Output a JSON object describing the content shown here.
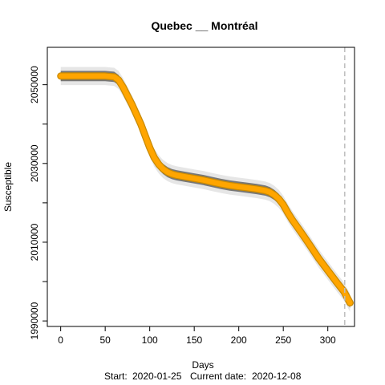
{
  "chart_data": {
    "type": "line",
    "title": "Quebec __ Montréal",
    "xlabel": "Days",
    "ylabel": "Susceptible",
    "footer_start_label": "Start:",
    "footer_start_value": "2020-01-25",
    "footer_current_label": "Current date:",
    "footer_current_value": "2020-12-08",
    "xlim": [
      -15,
      330
    ],
    "ylim": [
      1988600,
      2059500
    ],
    "x_ticks": [
      0,
      50,
      100,
      150,
      200,
      250,
      300
    ],
    "y_ticks": [
      1990000,
      2010000,
      2030000,
      2050000
    ],
    "y_minor_ticks": [
      2000000,
      2020000,
      2040000
    ],
    "current_day": 319,
    "grid": false,
    "colors": {
      "fit_line": "#ffa500",
      "fit_border": "#c98a00",
      "band_inner": "#777777",
      "band_outer": "#dcdcdc",
      "vline": "#bebebe"
    },
    "series": [
      {
        "x": [
          0,
          10,
          20,
          30,
          40,
          50,
          60,
          65,
          70,
          75,
          80,
          85,
          90,
          95,
          100,
          105,
          110,
          115,
          120,
          125,
          130,
          140,
          150,
          160,
          170,
          180,
          190,
          200,
          210,
          220,
          230,
          235,
          240,
          245,
          250,
          255,
          260,
          270,
          280,
          290,
          300,
          310,
          318,
          325
        ],
        "values": [
          2052200,
          2052200,
          2052200,
          2052200,
          2052200,
          2052200,
          2052000,
          2051200,
          2049400,
          2047200,
          2045000,
          2042500,
          2040000,
          2037000,
          2034000,
          2031500,
          2029800,
          2028600,
          2027800,
          2027300,
          2027000,
          2026600,
          2026200,
          2025800,
          2025300,
          2024800,
          2024400,
          2024100,
          2023800,
          2023500,
          2023100,
          2022700,
          2022000,
          2021000,
          2019500,
          2017500,
          2015700,
          2012500,
          2009200,
          2005800,
          2002800,
          1999800,
          1997500,
          1994600
        ]
      }
    ],
    "band_inner_halfwidth": 1300,
    "band_outer_halfwidth": 2300
  }
}
